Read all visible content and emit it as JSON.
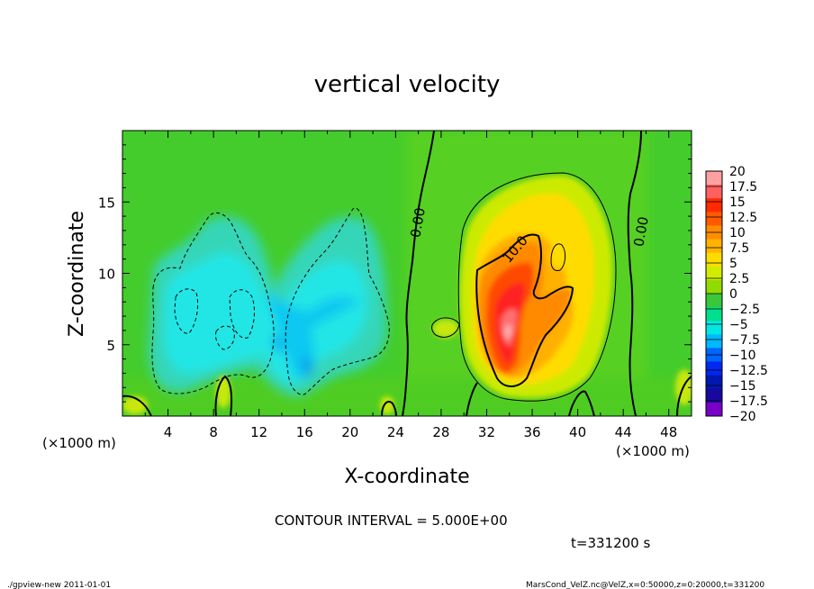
{
  "chart_data": {
    "type": "heatmap",
    "title": "vertical velocity",
    "xlabel": "X-coordinate",
    "ylabel": "Z-coordinate",
    "x_unit_label": "(×1000 m)",
    "z_unit_label": "(×1000 m)",
    "xlim": [
      0,
      50
    ],
    "ylim": [
      0,
      20
    ],
    "x_ticks": [
      4,
      8,
      12,
      16,
      20,
      24,
      28,
      32,
      36,
      40,
      44,
      48
    ],
    "y_ticks": [
      5,
      10,
      15
    ],
    "contour_interval_text": "CONTOUR INTERVAL = 5.000E+00",
    "time_text": "t=331200 s",
    "contour_labels": [
      {
        "text": "0.00",
        "x": 26.3,
        "z": 14.0,
        "angle": -80
      },
      {
        "text": "10.0",
        "x": 34.6,
        "z": 11.2,
        "angle": -50
      },
      {
        "text": "0.00",
        "x": 45.8,
        "z": 13.2,
        "angle": -80
      }
    ],
    "colorbar": {
      "labels": [
        "20",
        "17.5",
        "15",
        "12.5",
        "10",
        "7.5",
        "5",
        "2.5",
        "0",
        "−2.5",
        "−5",
        "−7.5",
        "−10",
        "−12.5",
        "−15",
        "−17.5",
        "−20"
      ],
      "colors": [
        "#ffa0a0",
        "#ff6060",
        "#ff2a00",
        "#ff5a00",
        "#ff8c00",
        "#ffb400",
        "#ffdc00",
        "#d0ec00",
        "#90dc00",
        "#38c838",
        "#00e08c",
        "#00e8e0",
        "#00b8ff",
        "#0064ff",
        "#0028f0",
        "#0018b0",
        "#1808a0",
        "#7800c8"
      ]
    },
    "features": [
      {
        "kind": "updraft",
        "x_center": 34,
        "z_center": 7,
        "max_value": 20
      },
      {
        "kind": "downdraft",
        "x_center": 15,
        "z_center": 7,
        "min_value": -7.5
      }
    ]
  },
  "footer": {
    "left": "./gpview-new   2011-01-01",
    "right": "MarsCond_VelZ.nc@VelZ,x=0:50000,z=0:20000,t=331200"
  }
}
